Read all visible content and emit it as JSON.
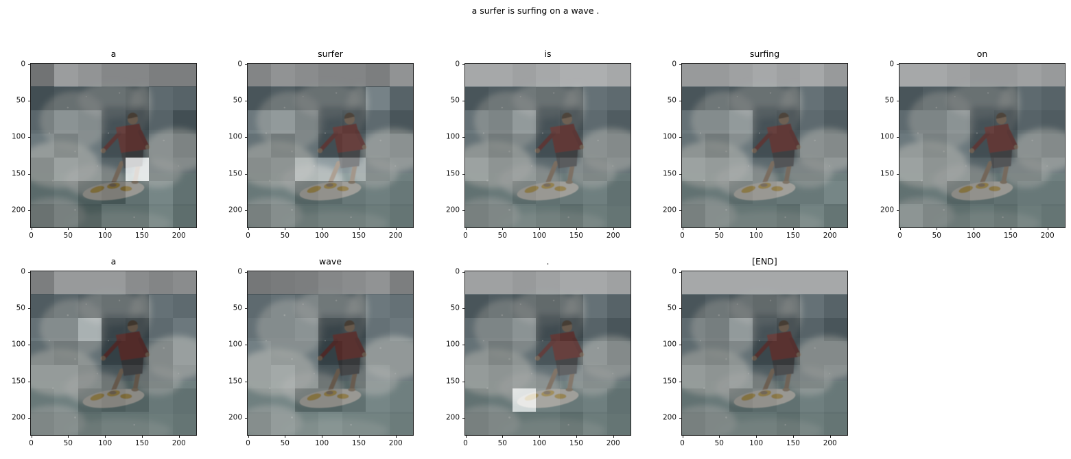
{
  "figure": {
    "suptitle": "a surfer is surfing on a wave .",
    "background": "#ffffff"
  },
  "axes": {
    "x_ticks": [
      0,
      50,
      100,
      150,
      200
    ],
    "y_ticks": [
      0,
      50,
      100,
      150,
      200
    ],
    "image_extent": [
      0,
      224
    ],
    "grid": "off",
    "legend": "none"
  },
  "scene_colors": {
    "sky": "#b6babd",
    "ocean_dark": "#45606b",
    "ocean_mid": "#53707a",
    "ocean_light": "#5b7f7f",
    "foam": "#c6cfcb",
    "shirt_red": "#87322f",
    "shorts": "#3c4145",
    "skin": "#a6876a",
    "board": "#d8d6ca",
    "board_yellow": "#c69f30"
  },
  "chart_data": {
    "type": "heatmap",
    "title": "a surfer is surfing on a wave .",
    "caption_tokens": [
      "a",
      "surfer",
      "is",
      "surfing",
      "on",
      "a",
      "wave",
      ".",
      "[END]"
    ],
    "grid_layout": {
      "rows": 2,
      "cols": 5,
      "occupied": 9
    },
    "patch_grid": [
      7,
      7
    ],
    "patch_size_px": 32,
    "overlay_alpha": 0.55,
    "plots": [
      {
        "title": "a",
        "attention": [
          [
            0.22,
            0.52,
            0.46,
            0.36,
            0.36,
            0.3,
            0.3
          ],
          [
            0.25,
            0.3,
            0.3,
            0.3,
            0.25,
            0.45,
            0.4
          ],
          [
            0.42,
            0.55,
            0.5,
            0.3,
            0.2,
            0.4,
            0.25
          ],
          [
            0.5,
            0.4,
            0.5,
            0.25,
            0.2,
            0.45,
            0.35
          ],
          [
            0.4,
            0.55,
            0.5,
            0.35,
            0.97,
            0.45,
            0.4
          ],
          [
            0.35,
            0.4,
            0.25,
            0.2,
            0.4,
            0.55,
            0.4
          ],
          [
            0.25,
            0.35,
            0.2,
            0.35,
            0.35,
            0.5,
            0.35
          ]
        ]
      },
      {
        "title": "surfer",
        "attention": [
          [
            0.35,
            0.45,
            0.4,
            0.35,
            0.35,
            0.3,
            0.45
          ],
          [
            0.3,
            0.35,
            0.3,
            0.3,
            0.3,
            0.62,
            0.4
          ],
          [
            0.55,
            0.6,
            0.45,
            0.3,
            0.25,
            0.45,
            0.3
          ],
          [
            0.45,
            0.35,
            0.45,
            0.25,
            0.3,
            0.5,
            0.45
          ],
          [
            0.4,
            0.45,
            0.72,
            0.76,
            0.72,
            0.45,
            0.5
          ],
          [
            0.45,
            0.5,
            0.3,
            0.35,
            0.45,
            0.5,
            0.45
          ],
          [
            0.35,
            0.45,
            0.35,
            0.4,
            0.4,
            0.45,
            0.4
          ]
        ]
      },
      {
        "title": "is",
        "attention": [
          [
            0.6,
            0.6,
            0.55,
            0.6,
            0.65,
            0.65,
            0.6
          ],
          [
            0.3,
            0.35,
            0.35,
            0.3,
            0.3,
            0.5,
            0.45
          ],
          [
            0.5,
            0.45,
            0.6,
            0.3,
            0.25,
            0.45,
            0.35
          ],
          [
            0.45,
            0.35,
            0.45,
            0.25,
            0.25,
            0.45,
            0.4
          ],
          [
            0.55,
            0.45,
            0.5,
            0.4,
            0.45,
            0.4,
            0.45
          ],
          [
            0.4,
            0.45,
            0.35,
            0.4,
            0.45,
            0.5,
            0.4
          ],
          [
            0.35,
            0.4,
            0.45,
            0.4,
            0.35,
            0.45,
            0.4
          ]
        ]
      },
      {
        "title": "surfing",
        "attention": [
          [
            0.5,
            0.5,
            0.55,
            0.6,
            0.55,
            0.6,
            0.5
          ],
          [
            0.3,
            0.35,
            0.3,
            0.3,
            0.3,
            0.5,
            0.4
          ],
          [
            0.5,
            0.5,
            0.6,
            0.3,
            0.25,
            0.45,
            0.35
          ],
          [
            0.45,
            0.35,
            0.5,
            0.25,
            0.25,
            0.45,
            0.4
          ],
          [
            0.55,
            0.5,
            0.55,
            0.4,
            0.4,
            0.4,
            0.5
          ],
          [
            0.4,
            0.45,
            0.35,
            0.4,
            0.45,
            0.45,
            0.55
          ],
          [
            0.35,
            0.45,
            0.4,
            0.4,
            0.35,
            0.5,
            0.4
          ]
        ]
      },
      {
        "title": "on",
        "attention": [
          [
            0.6,
            0.6,
            0.55,
            0.5,
            0.5,
            0.55,
            0.5
          ],
          [
            0.3,
            0.35,
            0.3,
            0.3,
            0.3,
            0.45,
            0.4
          ],
          [
            0.45,
            0.45,
            0.55,
            0.3,
            0.25,
            0.4,
            0.35
          ],
          [
            0.5,
            0.4,
            0.5,
            0.25,
            0.25,
            0.45,
            0.4
          ],
          [
            0.55,
            0.45,
            0.5,
            0.35,
            0.4,
            0.4,
            0.5
          ],
          [
            0.4,
            0.45,
            0.3,
            0.35,
            0.4,
            0.45,
            0.45
          ],
          [
            0.5,
            0.4,
            0.35,
            0.4,
            0.35,
            0.45,
            0.4
          ]
        ]
      },
      {
        "title": "a",
        "attention": [
          [
            0.3,
            0.5,
            0.5,
            0.5,
            0.4,
            0.35,
            0.4
          ],
          [
            0.35,
            0.4,
            0.35,
            0.3,
            0.3,
            0.5,
            0.45
          ],
          [
            0.5,
            0.5,
            0.76,
            0.2,
            0.15,
            0.45,
            0.55
          ],
          [
            0.4,
            0.35,
            0.45,
            0.15,
            0.15,
            0.4,
            0.55
          ],
          [
            0.5,
            0.5,
            0.4,
            0.25,
            0.25,
            0.4,
            0.5
          ],
          [
            0.45,
            0.5,
            0.3,
            0.25,
            0.3,
            0.45,
            0.4
          ],
          [
            0.4,
            0.45,
            0.35,
            0.4,
            0.4,
            0.45,
            0.4
          ]
        ]
      },
      {
        "title": "wave",
        "attention": [
          [
            0.25,
            0.28,
            0.3,
            0.36,
            0.4,
            0.45,
            0.3
          ],
          [
            0.45,
            0.5,
            0.45,
            0.35,
            0.35,
            0.55,
            0.5
          ],
          [
            0.5,
            0.5,
            0.55,
            0.2,
            0.2,
            0.5,
            0.55
          ],
          [
            0.55,
            0.5,
            0.5,
            0.15,
            0.2,
            0.5,
            0.5
          ],
          [
            0.55,
            0.6,
            0.5,
            0.25,
            0.3,
            0.55,
            0.5
          ],
          [
            0.5,
            0.55,
            0.3,
            0.3,
            0.4,
            0.55,
            0.5
          ],
          [
            0.45,
            0.55,
            0.5,
            0.55,
            0.5,
            0.5,
            0.45
          ]
        ]
      },
      {
        "title": ".",
        "attention": [
          [
            0.55,
            0.55,
            0.5,
            0.55,
            0.6,
            0.6,
            0.55
          ],
          [
            0.3,
            0.35,
            0.3,
            0.25,
            0.3,
            0.5,
            0.4
          ],
          [
            0.45,
            0.45,
            0.55,
            0.25,
            0.2,
            0.4,
            0.3
          ],
          [
            0.45,
            0.35,
            0.45,
            0.3,
            0.3,
            0.5,
            0.4
          ],
          [
            0.5,
            0.45,
            0.5,
            0.45,
            0.5,
            0.45,
            0.45
          ],
          [
            0.4,
            0.45,
            0.93,
            0.5,
            0.45,
            0.5,
            0.4
          ],
          [
            0.35,
            0.4,
            0.4,
            0.4,
            0.35,
            0.45,
            0.4
          ]
        ]
      },
      {
        "title": "[END]",
        "attention": [
          [
            0.6,
            0.6,
            0.6,
            0.6,
            0.6,
            0.6,
            0.6
          ],
          [
            0.3,
            0.35,
            0.3,
            0.25,
            0.3,
            0.5,
            0.4
          ],
          [
            0.45,
            0.4,
            0.6,
            0.3,
            0.2,
            0.4,
            0.3
          ],
          [
            0.4,
            0.35,
            0.45,
            0.2,
            0.2,
            0.4,
            0.4
          ],
          [
            0.5,
            0.45,
            0.5,
            0.3,
            0.35,
            0.4,
            0.45
          ],
          [
            0.4,
            0.45,
            0.3,
            0.35,
            0.4,
            0.5,
            0.45
          ],
          [
            0.35,
            0.4,
            0.4,
            0.4,
            0.35,
            0.45,
            0.4
          ]
        ]
      }
    ]
  }
}
